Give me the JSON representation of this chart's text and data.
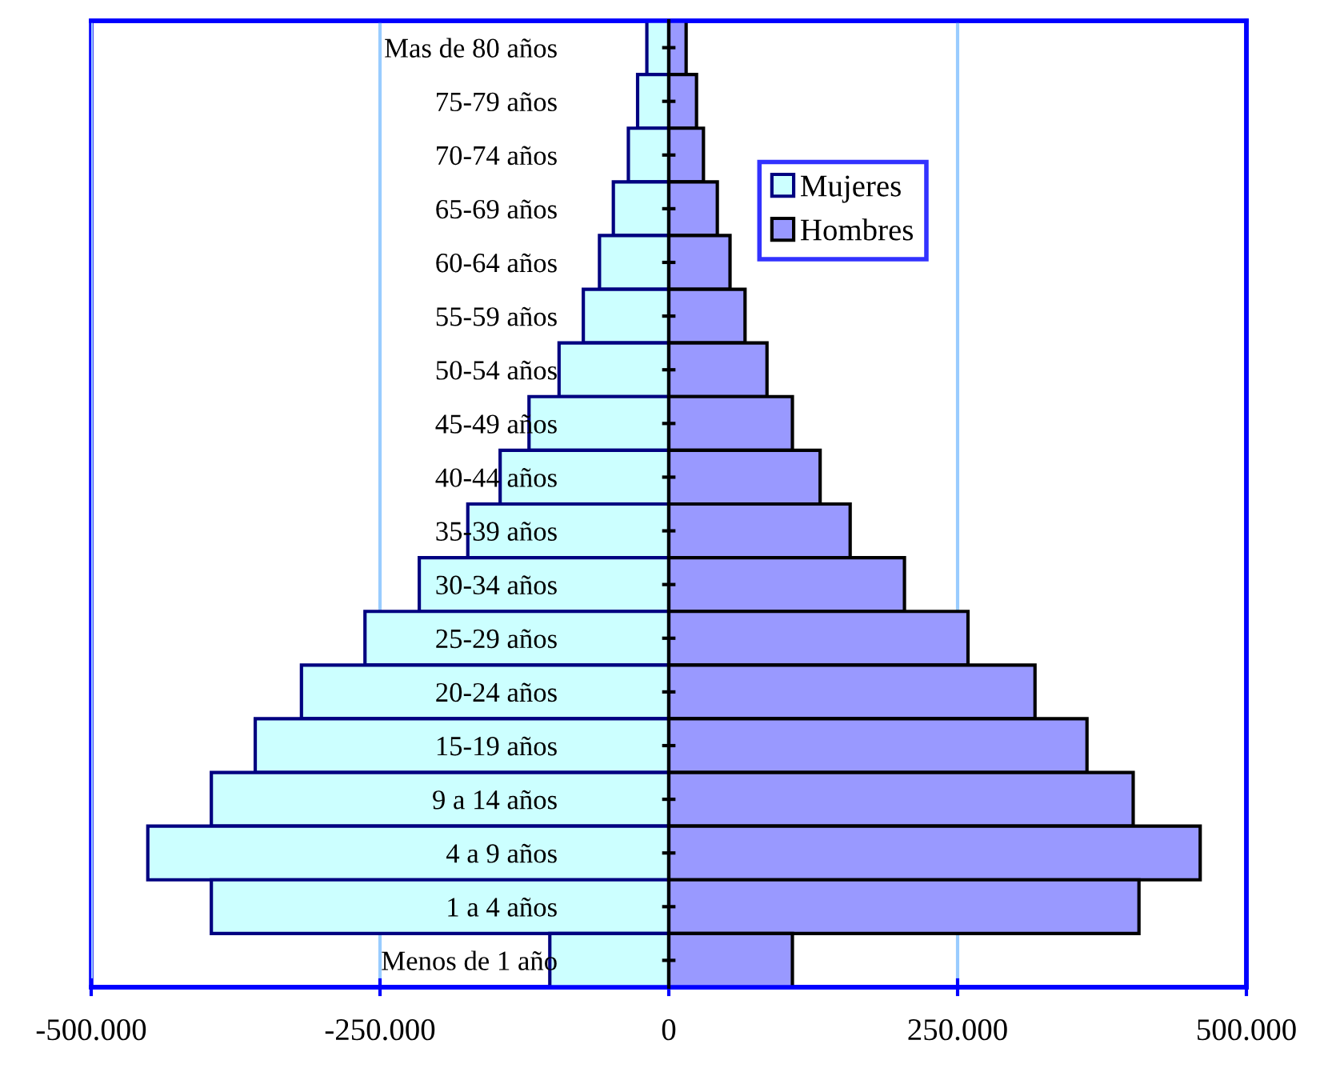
{
  "chart_data": {
    "type": "bar",
    "orientation": "horizontal",
    "stacked": true,
    "categories": [
      "Mas de 80 años",
      "75-79 años",
      "70-74 años",
      "65-69 años",
      "60-64 años",
      "55-59 años",
      "50-54 años",
      "45-49 años",
      "40-44 años",
      "35-39 años",
      "30-34 años",
      "25-29 años",
      "20-24 años",
      "15-19 años",
      "9 a 14 años",
      "4 a 9 años",
      "1 a 4 años",
      "Menos de 1 año"
    ],
    "series": [
      {
        "name": "Mujeres",
        "color": "#ccffff",
        "values": [
          -19000,
          -27000,
          -35000,
          -48000,
          -60000,
          -74000,
          -95000,
          -121000,
          -146000,
          -174000,
          -216000,
          -263000,
          -318000,
          -358000,
          -396000,
          -451000,
          -396000,
          -103000
        ]
      },
      {
        "name": "Hombres",
        "color": "#9999ff",
        "values": [
          15000,
          24000,
          30000,
          42000,
          53000,
          66000,
          85000,
          107000,
          131000,
          157000,
          204000,
          259000,
          317000,
          362000,
          402000,
          460000,
          407000,
          107000
        ]
      }
    ],
    "xlim": [
      -500000,
      500000
    ],
    "xticks": [
      {
        "value": -500000,
        "label": "-500.000"
      },
      {
        "value": -250000,
        "label": "-250.000"
      },
      0,
      {
        "value": 250000,
        "label": "250.000"
      },
      {
        "value": 500000,
        "label": "500.000"
      }
    ],
    "grid": "x",
    "legend": "top"
  }
}
